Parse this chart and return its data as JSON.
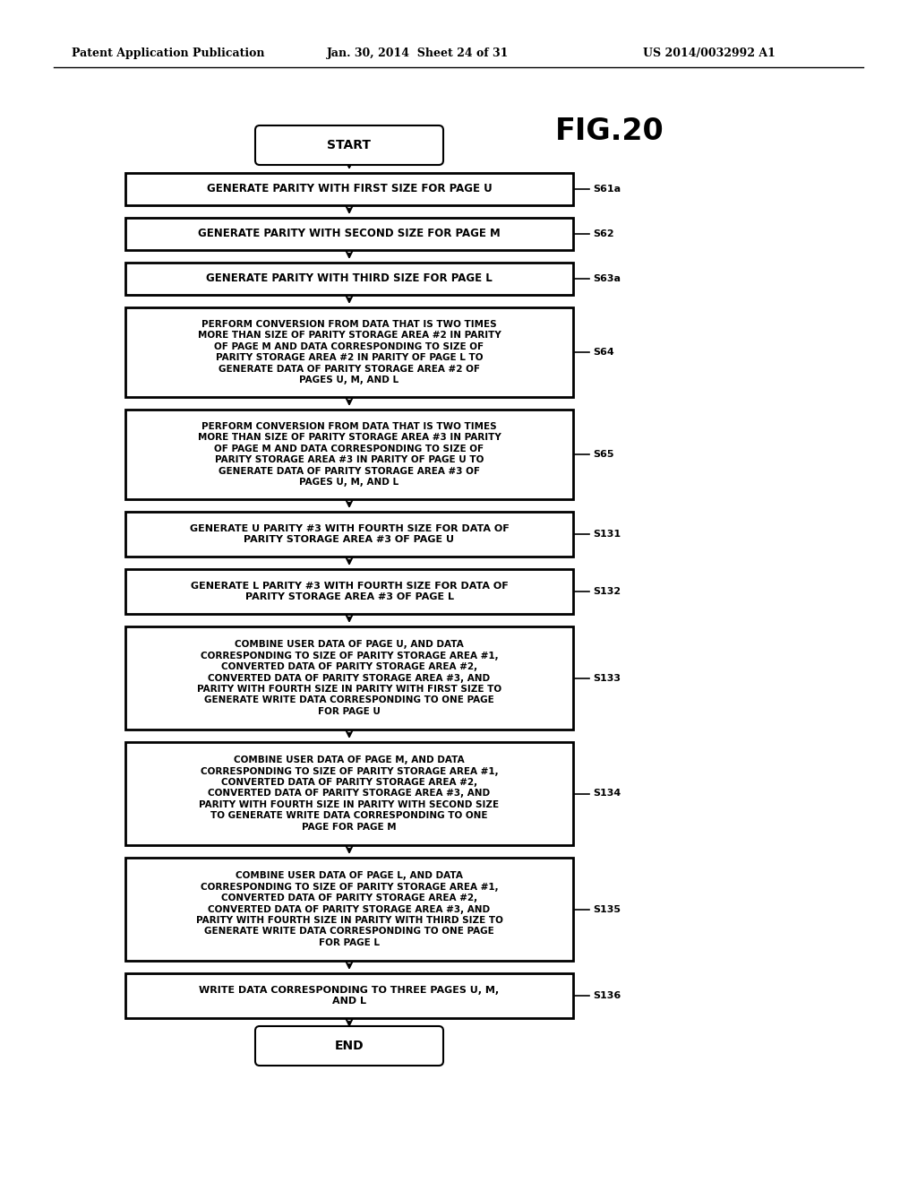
{
  "background_color": "#ffffff",
  "header_left": "Patent Application Publication",
  "header_mid": "Jan. 30, 2014  Sheet 24 of 31",
  "header_right": "US 2014/0032992 A1",
  "fig_title": "FIG.20",
  "boxes": [
    {
      "id": "start",
      "shape": "stadium",
      "text": "START",
      "label": "",
      "lines": 1
    },
    {
      "id": "s61a",
      "shape": "rect",
      "text": "GENERATE PARITY WITH FIRST SIZE FOR PAGE U",
      "label": "S61a",
      "lines": 1
    },
    {
      "id": "s62",
      "shape": "rect",
      "text": "GENERATE PARITY WITH SECOND SIZE FOR PAGE M",
      "label": "S62",
      "lines": 1
    },
    {
      "id": "s63a",
      "shape": "rect",
      "text": "GENERATE PARITY WITH THIRD SIZE FOR PAGE L",
      "label": "S63a",
      "lines": 1
    },
    {
      "id": "s64",
      "shape": "rect",
      "text": "PERFORM CONVERSION FROM DATA THAT IS TWO TIMES\nMORE THAN SIZE OF PARITY STORAGE AREA #2 IN PARITY\nOF PAGE M AND DATA CORRESPONDING TO SIZE OF\nPARITY STORAGE AREA #2 IN PARITY OF PAGE L TO\nGENERATE DATA OF PARITY STORAGE AREA #2 OF\nPAGES U, M, AND L",
      "label": "S64",
      "lines": 6
    },
    {
      "id": "s65",
      "shape": "rect",
      "text": "PERFORM CONVERSION FROM DATA THAT IS TWO TIMES\nMORE THAN SIZE OF PARITY STORAGE AREA #3 IN PARITY\nOF PAGE M AND DATA CORRESPONDING TO SIZE OF\nPARITY STORAGE AREA #3 IN PARITY OF PAGE U TO\nGENERATE DATA OF PARITY STORAGE AREA #3 OF\nPAGES U, M, AND L",
      "label": "S65",
      "lines": 6
    },
    {
      "id": "s131",
      "shape": "rect",
      "text": "GENERATE U PARITY #3 WITH FOURTH SIZE FOR DATA OF\nPARITY STORAGE AREA #3 OF PAGE U",
      "label": "S131",
      "lines": 2
    },
    {
      "id": "s132",
      "shape": "rect",
      "text": "GENERATE L PARITY #3 WITH FOURTH SIZE FOR DATA OF\nPARITY STORAGE AREA #3 OF PAGE L",
      "label": "S132",
      "lines": 2
    },
    {
      "id": "s133",
      "shape": "rect",
      "text": "COMBINE USER DATA OF PAGE U, AND DATA\nCORRESPONDING TO SIZE OF PARITY STORAGE AREA #1,\nCONVERTED DATA OF PARITY STORAGE AREA #2,\nCONVERTED DATA OF PARITY STORAGE AREA #3, AND\nPARITY WITH FOURTH SIZE IN PARITY WITH FIRST SIZE TO\nGENERATE WRITE DATA CORRESPONDING TO ONE PAGE\nFOR PAGE U",
      "label": "S133",
      "lines": 7
    },
    {
      "id": "s134",
      "shape": "rect",
      "text": "COMBINE USER DATA OF PAGE M, AND DATA\nCORRESPONDING TO SIZE OF PARITY STORAGE AREA #1,\nCONVERTED DATA OF PARITY STORAGE AREA #2,\nCONVERTED DATA OF PARITY STORAGE AREA #3, AND\nPARITY WITH FOURTH SIZE IN PARITY WITH SECOND SIZE\nTO GENERATE WRITE DATA CORRESPONDING TO ONE\nPAGE FOR PAGE M",
      "label": "S134",
      "lines": 7
    },
    {
      "id": "s135",
      "shape": "rect",
      "text": "COMBINE USER DATA OF PAGE L, AND DATA\nCORRESPONDING TO SIZE OF PARITY STORAGE AREA #1,\nCONVERTED DATA OF PARITY STORAGE AREA #2,\nCONVERTED DATA OF PARITY STORAGE AREA #3, AND\nPARITY WITH FOURTH SIZE IN PARITY WITH THIRD SIZE TO\nGENERATE WRITE DATA CORRESPONDING TO ONE PAGE\nFOR PAGE L",
      "label": "S135",
      "lines": 7
    },
    {
      "id": "s136",
      "shape": "rect",
      "text": "WRITE DATA CORRESPONDING TO THREE PAGES U, M,\nAND L",
      "label": "S136",
      "lines": 2
    },
    {
      "id": "end",
      "shape": "stadium",
      "text": "END",
      "label": "",
      "lines": 1
    }
  ]
}
